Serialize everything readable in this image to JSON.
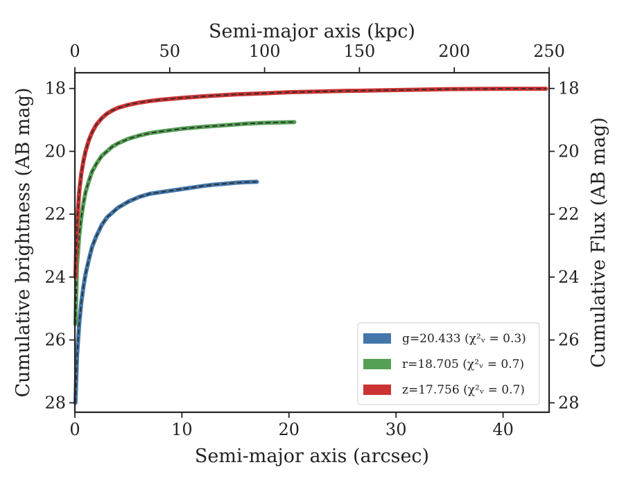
{
  "chart_data": {
    "type": "line",
    "xlabel": "Semi-major axis (arcsec)",
    "ylabel": "Cumulative brightness (AB mag)",
    "top_xlabel": "Semi-major axis (kpc)",
    "right_ylabel": "Cumulative Flux (AB mag)",
    "xlim": [
      0,
      44.3
    ],
    "ylim": [
      28.3,
      17.5
    ],
    "y_inverted": true,
    "top_xlim": [
      0,
      250
    ],
    "xticks": [
      "0",
      "10",
      "20",
      "30",
      "40"
    ],
    "xtick_values": [
      0,
      10,
      20,
      30,
      40
    ],
    "yticks": [
      "18",
      "20",
      "22",
      "24",
      "26",
      "28"
    ],
    "ytick_values": [
      18,
      20,
      22,
      24,
      26,
      28
    ],
    "top_xticks": [
      "0",
      "50",
      "100",
      "150",
      "200",
      "250"
    ],
    "top_xtick_values": [
      0,
      50,
      100,
      150,
      200,
      250
    ],
    "legend_position": "lower right",
    "model_line_style": "dashed",
    "series": [
      {
        "name": "g=20.433",
        "chi2_label": "(χ²ᵥ = 0.3)",
        "color": "#4477aa",
        "x": [
          0.05,
          0.2,
          0.4,
          0.6,
          0.8,
          1.0,
          1.3,
          1.6,
          2.0,
          2.5,
          3.0,
          3.5,
          4.0,
          5.0,
          6.0,
          7.0,
          8.0,
          9.0,
          10.0,
          11.0,
          12.0,
          13.0,
          14.0,
          15.0,
          16.0,
          17.0
        ],
        "y": [
          28.0,
          26.5,
          25.5,
          24.8,
          24.3,
          23.9,
          23.45,
          23.05,
          22.7,
          22.35,
          22.1,
          21.95,
          21.8,
          21.6,
          21.45,
          21.35,
          21.3,
          21.25,
          21.2,
          21.15,
          21.1,
          21.06,
          21.03,
          21.0,
          20.98,
          20.97
        ]
      },
      {
        "name": "r=18.705",
        "chi2_label": "(χ²ᵥ = 0.7)",
        "color": "#55a055",
        "x": [
          0.05,
          0.2,
          0.4,
          0.6,
          0.8,
          1.0,
          1.3,
          1.6,
          2.0,
          2.5,
          3.0,
          3.5,
          4.0,
          5.0,
          6.0,
          7.0,
          8.0,
          10.0,
          12.0,
          14.0,
          16.0,
          18.0,
          20.5
        ],
        "y": [
          25.5,
          23.6,
          22.7,
          22.1,
          21.65,
          21.3,
          20.95,
          20.65,
          20.4,
          20.15,
          20.0,
          19.85,
          19.75,
          19.6,
          19.5,
          19.42,
          19.37,
          19.28,
          19.22,
          19.17,
          19.12,
          19.09,
          19.07
        ]
      },
      {
        "name": "z=17.756",
        "chi2_label": "(χ²ᵥ = 0.7)",
        "color": "#cc3333",
        "x": [
          0.05,
          0.2,
          0.4,
          0.6,
          0.8,
          1.0,
          1.3,
          1.6,
          2.0,
          2.5,
          3.0,
          3.5,
          4.0,
          5.0,
          6.0,
          7.0,
          8.0,
          10.0,
          12.0,
          15.0,
          18.0,
          20.0,
          25.0,
          30.0,
          35.0,
          40.0,
          44.0
        ],
        "y": [
          24.0,
          22.3,
          21.3,
          20.7,
          20.3,
          20.0,
          19.65,
          19.4,
          19.15,
          18.95,
          18.8,
          18.7,
          18.62,
          18.52,
          18.45,
          18.4,
          18.36,
          18.3,
          18.25,
          18.19,
          18.15,
          18.12,
          18.08,
          18.05,
          18.02,
          18.01,
          18.01
        ]
      }
    ]
  }
}
